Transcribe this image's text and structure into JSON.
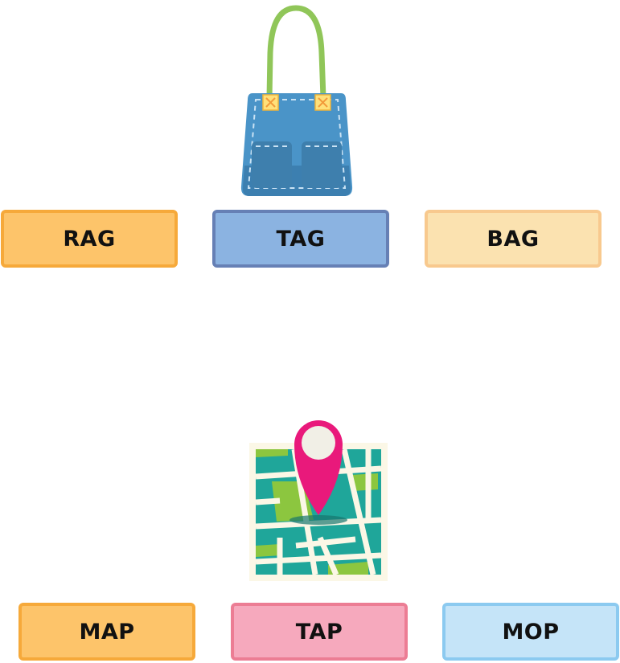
{
  "questions": [
    {
      "picture": "handbag-icon",
      "options": [
        {
          "label": "RAG",
          "fill": "#FDC46A",
          "border": "#F6A93A"
        },
        {
          "label": "TAG",
          "fill": "#8BB3E1",
          "border": "#6680B5"
        },
        {
          "label": "BAG",
          "fill": "#FBE2B0",
          "border": "#F8C98E"
        }
      ]
    },
    {
      "picture": "map-pin-icon",
      "options": [
        {
          "label": "MAP",
          "fill": "#FDC46A",
          "border": "#F6A93A"
        },
        {
          "label": "TAP",
          "fill": "#F6A9BD",
          "border": "#EC7D94"
        },
        {
          "label": "MOP",
          "fill": "#C5E4F8",
          "border": "#8CCAF0"
        }
      ]
    }
  ]
}
